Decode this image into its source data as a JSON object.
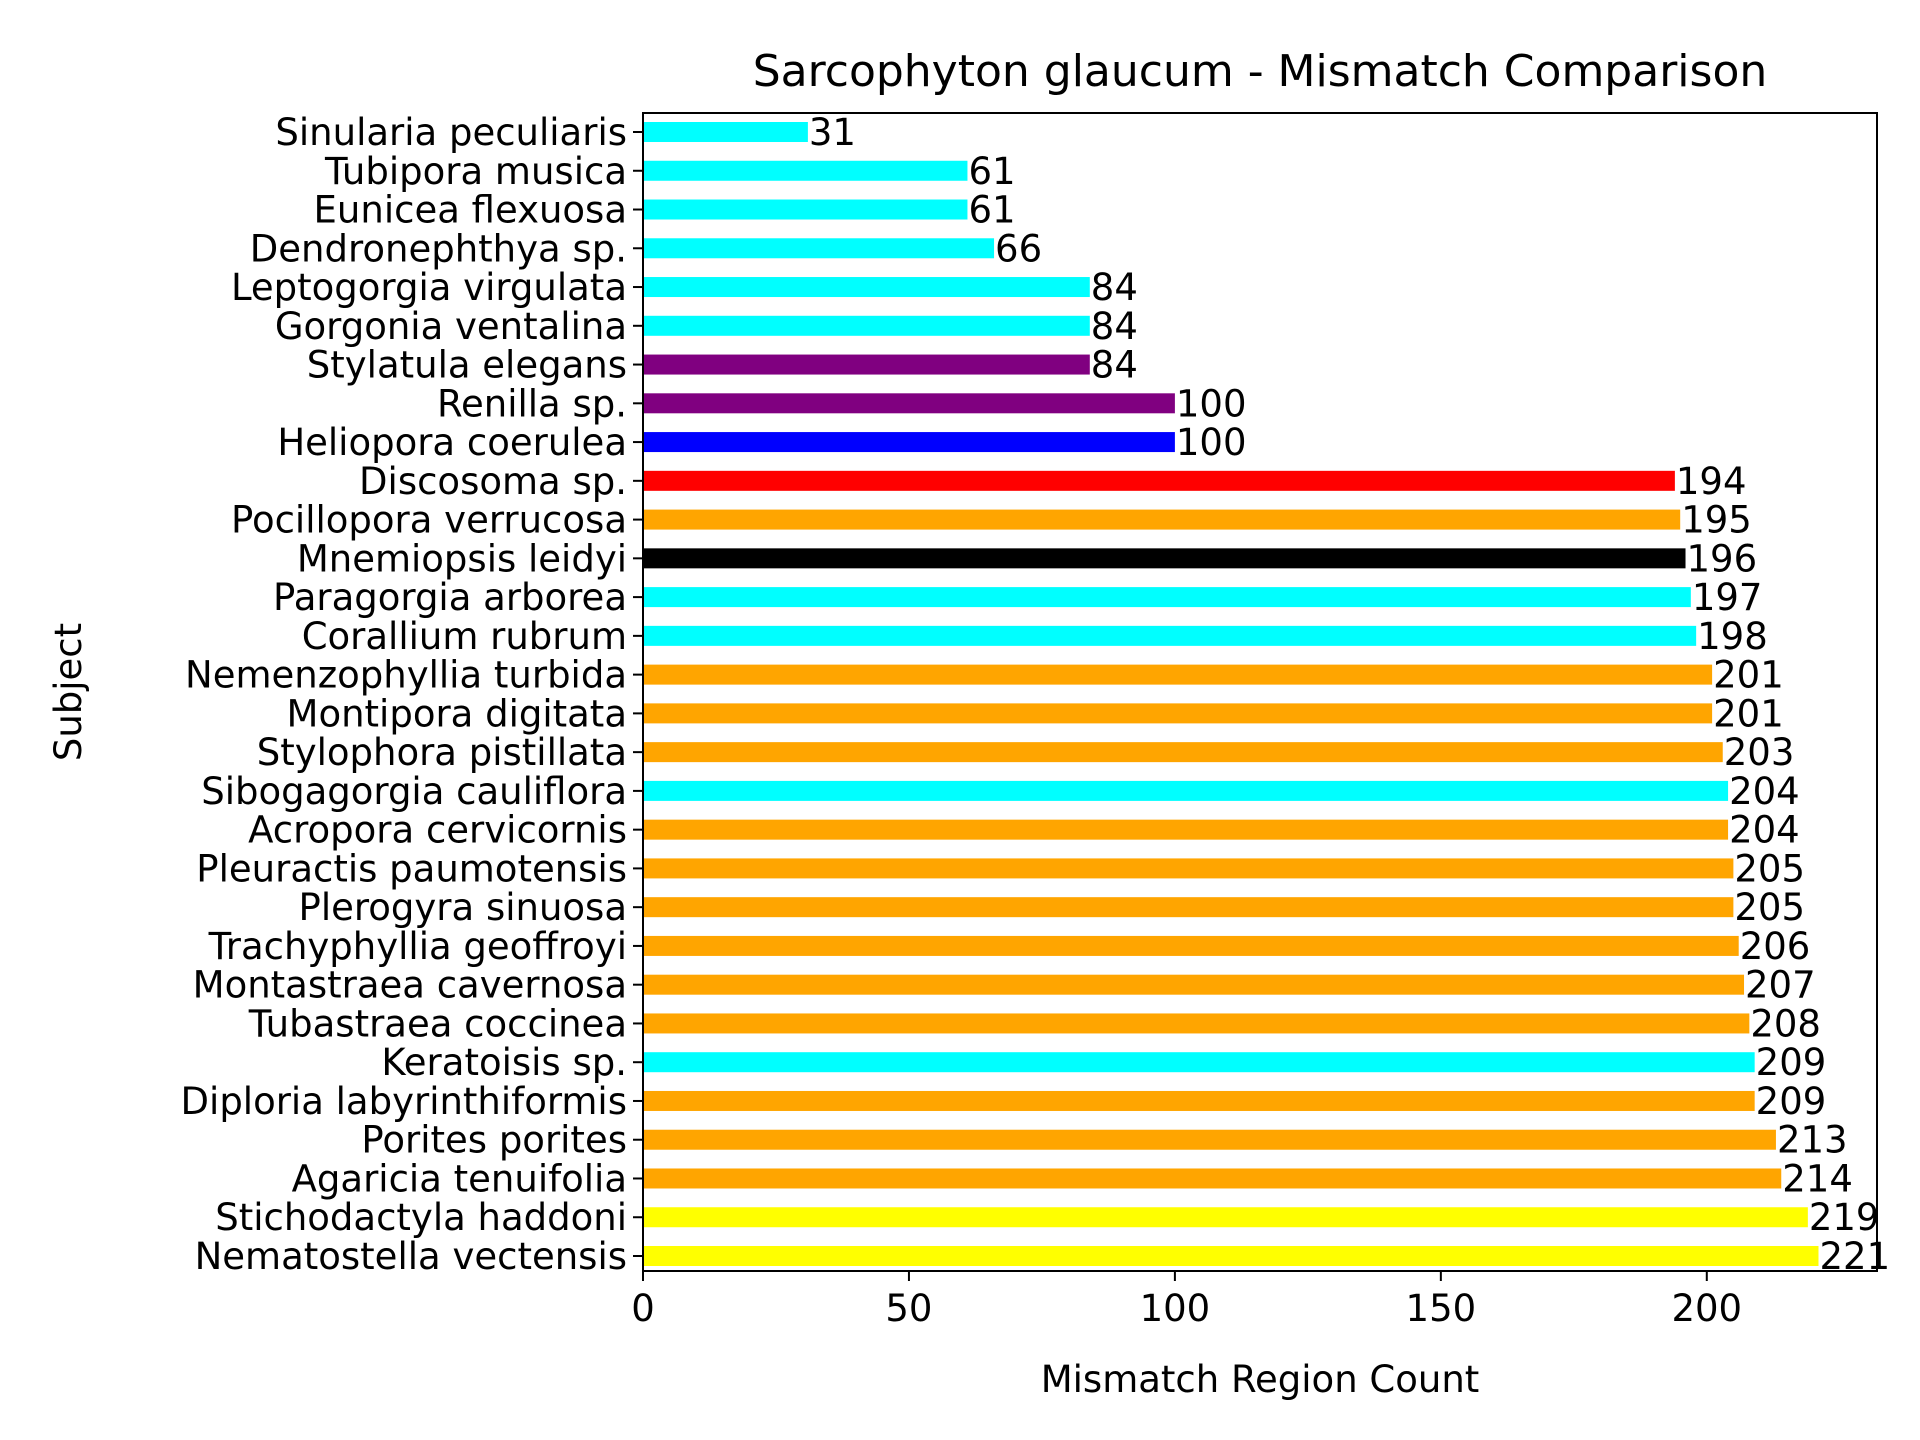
{
  "chart_data": {
    "type": "bar",
    "orientation": "horizontal",
    "title": "Sarcophyton glaucum - Mismatch Comparison",
    "xlabel": "Mismatch Region Count",
    "ylabel": "Subject",
    "xlim": [
      0,
      232
    ],
    "xticks": [
      0,
      50,
      100,
      150,
      200
    ],
    "grid": false,
    "categories": [
      "Nematostella vectensis",
      "Stichodactyla haddoni",
      "Agaricia tenuifolia",
      "Porites porites",
      "Diploria labyrinthiformis",
      "Keratoisis sp.",
      "Tubastraea coccinea",
      "Montastraea cavernosa",
      "Trachyphyllia geoffroyi",
      "Plerogyra sinuosa",
      "Pleuractis paumotensis",
      "Acropora cervicornis",
      "Sibogagorgia cauliflora",
      "Stylophora pistillata",
      "Montipora digitata",
      "Nemenzophyllia turbida",
      "Corallium rubrum",
      "Paragorgia arborea",
      "Mnemiopsis leidyi",
      "Pocillopora verrucosa",
      "Discosoma sp.",
      "Heliopora coerulea",
      "Renilla sp.",
      "Stylatula elegans",
      "Gorgonia ventalina",
      "Leptogorgia virgulata",
      "Dendronephthya sp.",
      "Eunicea flexuosa",
      "Tubipora musica",
      "Sinularia peculiaris"
    ],
    "values": [
      221,
      219,
      214,
      213,
      209,
      209,
      208,
      207,
      206,
      205,
      205,
      204,
      204,
      203,
      201,
      201,
      198,
      197,
      196,
      195,
      194,
      100,
      100,
      84,
      84,
      84,
      66,
      61,
      61,
      31
    ],
    "colors": [
      "#ffff00",
      "#ffff00",
      "#ffa500",
      "#ffa500",
      "#ffa500",
      "#00ffff",
      "#ffa500",
      "#ffa500",
      "#ffa500",
      "#ffa500",
      "#ffa500",
      "#ffa500",
      "#00ffff",
      "#ffa500",
      "#ffa500",
      "#ffa500",
      "#00ffff",
      "#00ffff",
      "#000000",
      "#ffa500",
      "#ff0000",
      "#0000ff",
      "#800080",
      "#800080",
      "#00ffff",
      "#00ffff",
      "#00ffff",
      "#00ffff",
      "#00ffff",
      "#00ffff"
    ]
  }
}
